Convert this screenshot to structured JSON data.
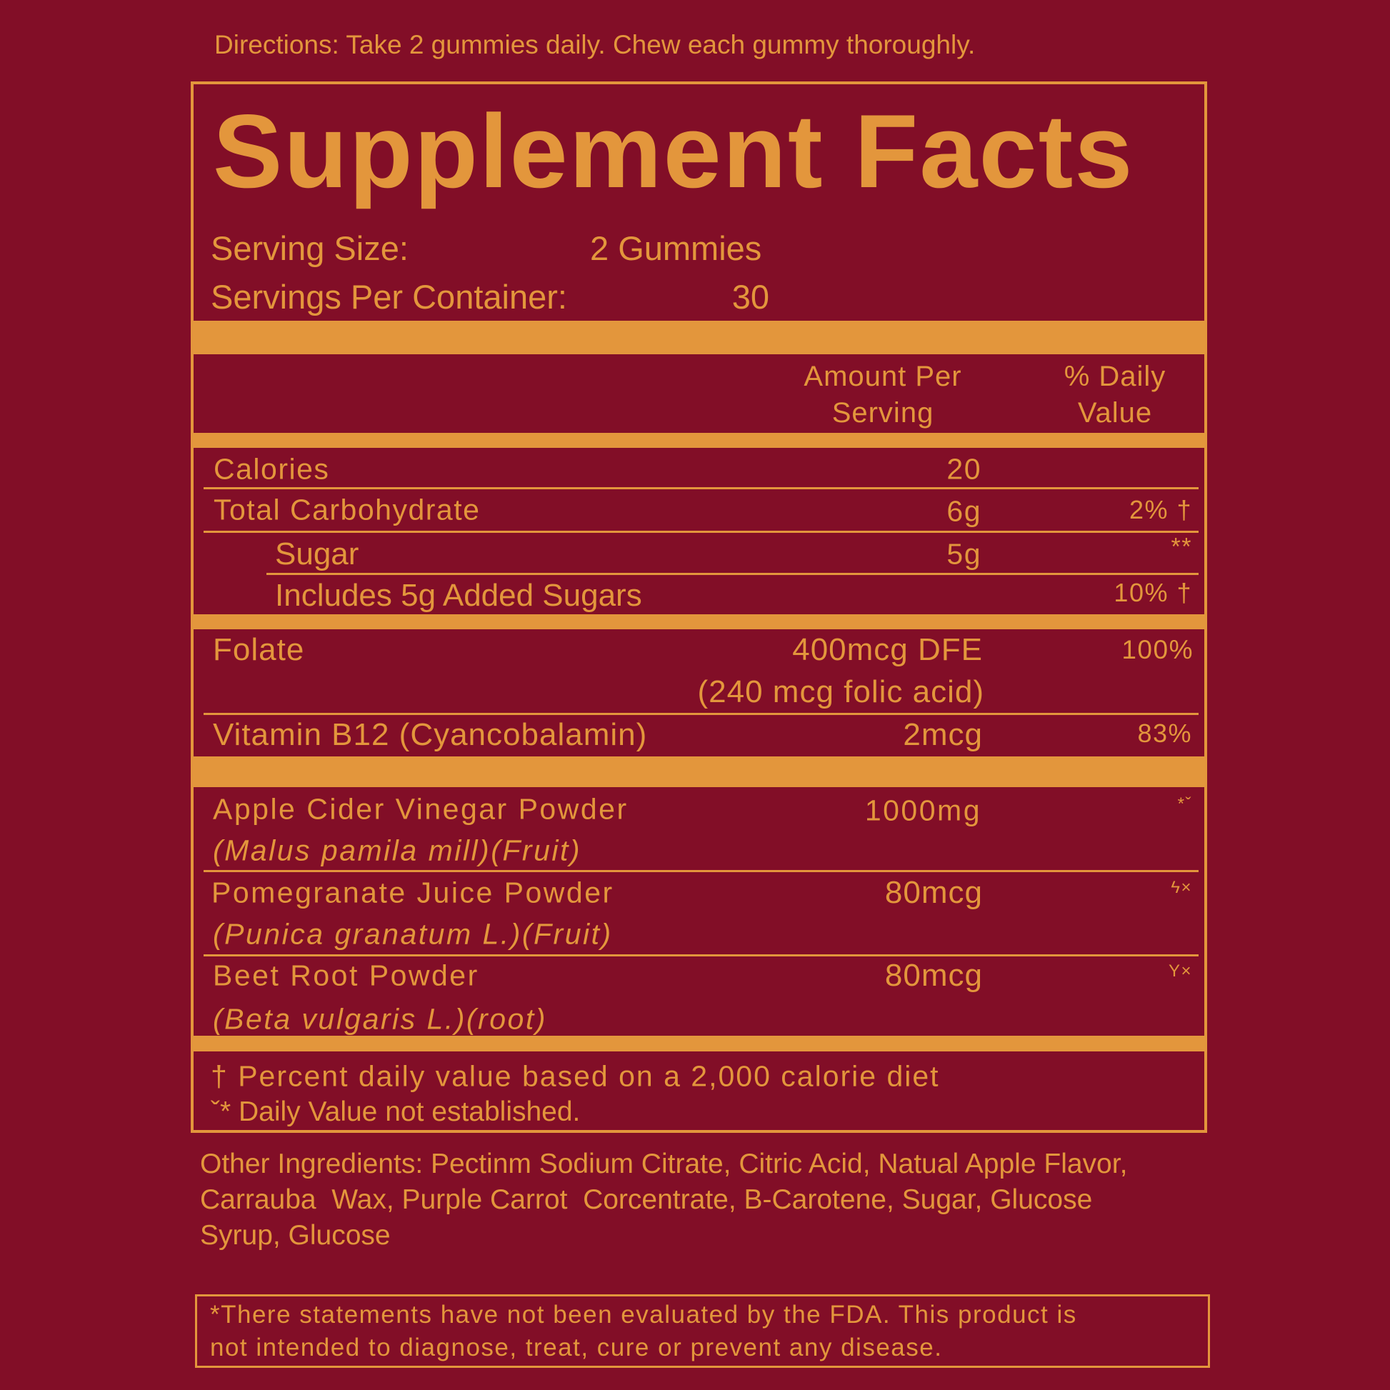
{
  "directions": "Directions: Take 2 gummies daily. Chew each gummy thoroughly.",
  "title": "Supplement Facts",
  "serving": {
    "size_label": "Serving Size:",
    "size_value": "2 Gummies",
    "per_container_label": "Servings Per Container:",
    "per_container_value": "30"
  },
  "header": {
    "amount_line1": "Amount Per",
    "amount_line2": "Serving",
    "dv_line1": "% Daily",
    "dv_line2": "Value"
  },
  "nutrients": [
    {
      "name": "Calories",
      "amount": "20",
      "dv": ""
    },
    {
      "name": "Total Carbohydrate",
      "amount": "6g",
      "dv": "2% †"
    },
    {
      "name": "Sugar",
      "amount": "5g",
      "dv": "**"
    },
    {
      "name": "Includes 5g Added Sugars",
      "amount": "",
      "dv": "10% †"
    }
  ],
  "vitamins": [
    {
      "name": "Folate",
      "amount": "400mcg DFE",
      "amount_note": "(240 mcg folic acid)",
      "dv": "100%"
    },
    {
      "name": "Vitamin B12 (Cyancobalamin)",
      "amount": "2mcg",
      "dv": "83%"
    }
  ],
  "botanicals": [
    {
      "name": "Apple Cider Vinegar Powder",
      "latin": "(Malus pamila mill)(Fruit)",
      "amount": "1000mg",
      "dv": "*ˇ"
    },
    {
      "name": "Pomegranate Juice Powder",
      "latin": "(Punica granatum L.)(Fruit)",
      "amount": "80mcg",
      "dv": "ϟ×"
    },
    {
      "name": "Beet Root Powder",
      "latin": "(Beta vulgaris L.)(root)",
      "amount": "80mcg",
      "dv": "Y×"
    }
  ],
  "footnotes": [
    "† Percent daily value based on a 2,000 calorie diet",
    "ˇ* Daily Value not established."
  ],
  "other_ingredients": [
    "Other Ingredients: Pectinm Sodium Citrate, Citric Acid, Natual Apple Flavor,",
    "Carrauba  Wax, Purple Carrot  Corcentrate, B-Carotene, Sugar, Glucose",
    "Syrup, Glucose"
  ],
  "disclaimer": [
    "*There statements have not been evaluated by the FDA. This product is",
    "not intended to diagnose, treat, cure or prevent any disease."
  ],
  "colors": {
    "background": "#820e27",
    "accent": "#e3963c"
  }
}
